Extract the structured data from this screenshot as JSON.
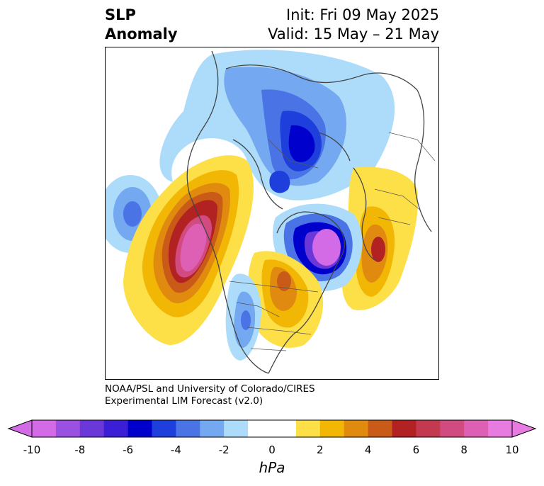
{
  "title": {
    "left_line1": "SLP",
    "left_line2": "Anomaly",
    "right_line1": "Init: Fri 09 May 2025",
    "right_line2": "Valid: 15 May – 21 May"
  },
  "credit": {
    "line1": "NOAA/PSL and University of Colorado/CIRES",
    "line2": "Experimental LIM Forecast (v2.0)"
  },
  "colorbar": {
    "unit": "hPa",
    "tick_labels": [
      "-10",
      "-8",
      "-6",
      "-4",
      "-2",
      "0",
      "2",
      "4",
      "6",
      "8",
      "10"
    ],
    "colors": [
      "#d36ae6",
      "#9a50e0",
      "#6a37d8",
      "#3a1fd6",
      "#0000cd",
      "#1f3fdc",
      "#4a74e6",
      "#74a8f0",
      "#acdcfa",
      "#ffffff",
      "#ffffff",
      "#fde047",
      "#f2b705",
      "#e08a10",
      "#c95a18",
      "#b22222",
      "#c33a50",
      "#d14a80",
      "#de60b4",
      "#e77be0"
    ]
  },
  "map": {
    "variable": "sea level pressure anomaly",
    "projection": "north-polar stereographic",
    "features": [
      {
        "name": "positive anomaly NE Pacific",
        "peak_hPa": 10
      },
      {
        "name": "positive anomaly Eastern Atlantic",
        "peak_hPa": 6
      },
      {
        "name": "positive anomaly Great Lakes",
        "peak_hPa": 5
      },
      {
        "name": "negative anomaly North Atlantic",
        "peak_hPa": -10
      },
      {
        "name": "negative anomaly Arctic",
        "peak_hPa": -6
      },
      {
        "name": "negative anomaly Central Pacific",
        "peak_hPa": -4
      },
      {
        "name": "negative anomaly Great Plains",
        "peak_hPa": -4
      }
    ]
  }
}
